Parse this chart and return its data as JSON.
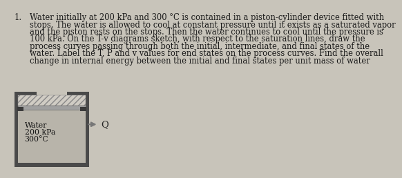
{
  "background_color": "#c8c4ba",
  "text_color": "#1a1a1a",
  "problem_number": "1.",
  "problem_text_lines": [
    "Water initially at 200 kPa and 300 °C is contained in a piston-cylinder device fitted with",
    "stops. The water is allowed to cool at constant pressure until it exists as a saturated vapor",
    "and the piston rests on the stops. Then the water continues to cool until the pressure is",
    "100 kPa. On the T-v diagrams sketch, with respect to the saturation lines, draw the",
    "process curves passing through both the initial, intermediate, and final states of the",
    "water. Label the T, P and v values for end states on the process curves. Find the overall",
    "change in internal energy between the initial and final states per unit mass of water"
  ],
  "cylinder_label_line1": "Water",
  "cylinder_label_line2": "200 kPa",
  "cylinder_label_line3": "300°C",
  "heat_label": "Q",
  "wall_color": "#4a4a4a",
  "inner_fill_color": "#b8b4aa",
  "piston_fill_color": "#a0a0a0",
  "hatch_fill_color": "#d0ccc4",
  "stop_color": "#3a3a3a",
  "text_fontsize": 8.3,
  "label_fontsize": 7.8,
  "heat_fontsize": 9.5
}
